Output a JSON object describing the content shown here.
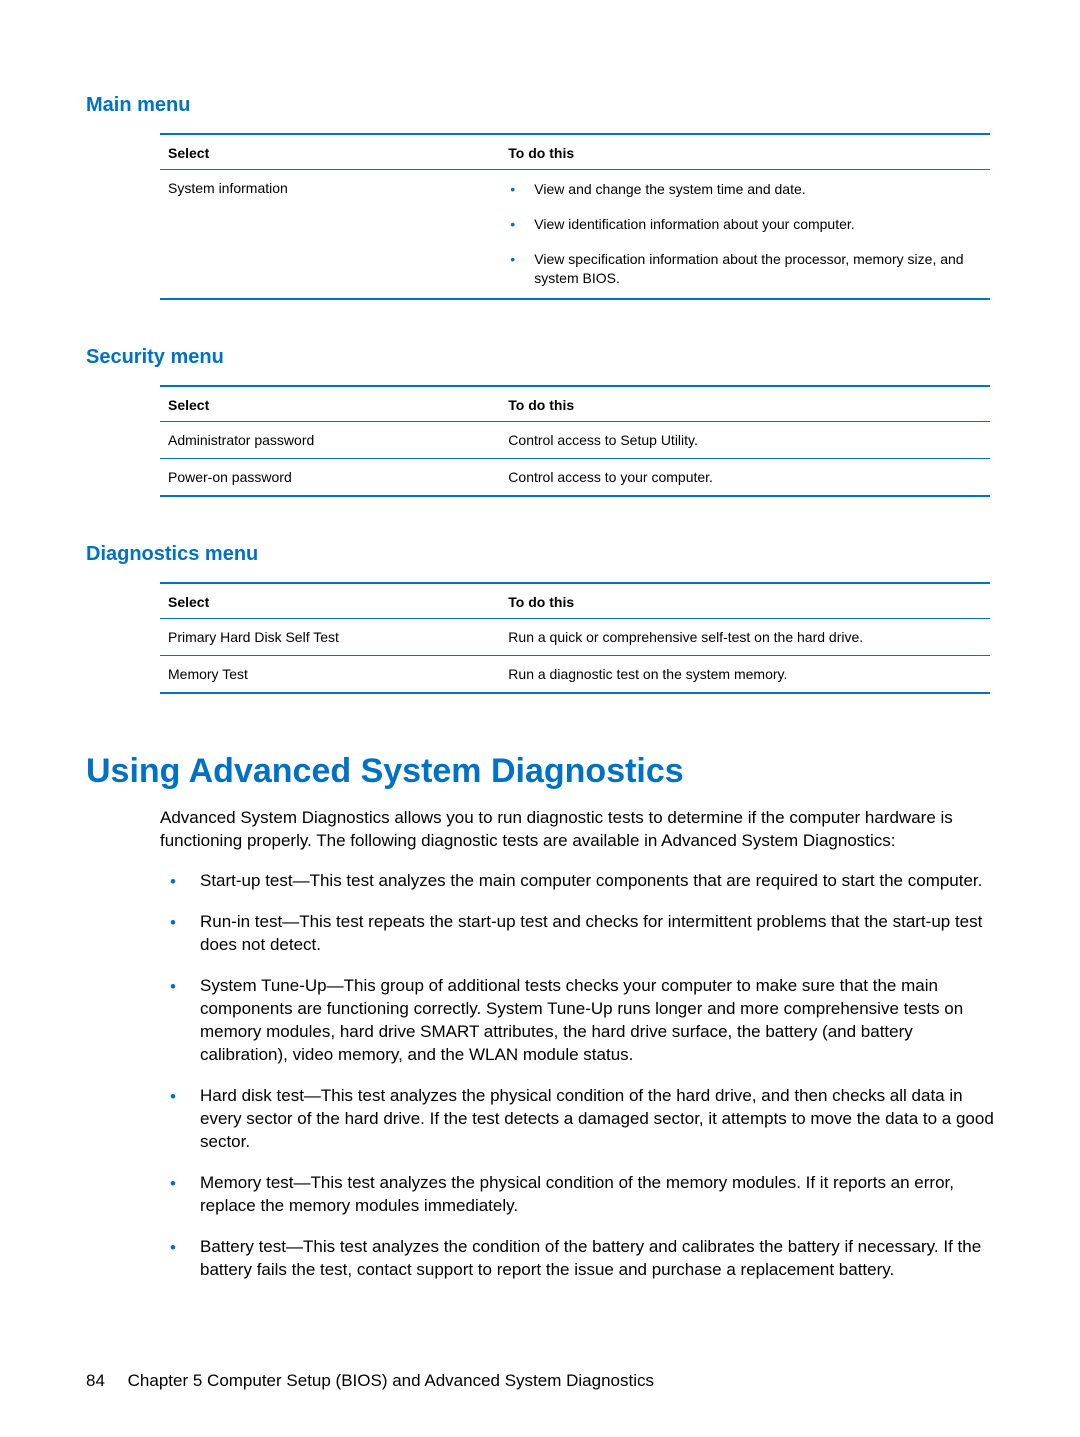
{
  "colors": {
    "accent": "#0171c5",
    "text": "#000000",
    "background": "#ffffff"
  },
  "sections": [
    {
      "title": "Main menu",
      "headers": {
        "select": "Select",
        "action": "To do this"
      },
      "rows": [
        {
          "select": "System information",
          "bullets": [
            "View and change the system time and date.",
            "View identification information about your computer.",
            "View specification information about the processor, memory size, and system BIOS."
          ]
        }
      ]
    },
    {
      "title": "Security menu",
      "headers": {
        "select": "Select",
        "action": "To do this"
      },
      "rows": [
        {
          "select": "Administrator password",
          "action": "Control access to Setup Utility."
        },
        {
          "select": "Power-on password",
          "action": "Control access to your computer."
        }
      ]
    },
    {
      "title": "Diagnostics menu",
      "headers": {
        "select": "Select",
        "action": "To do this"
      },
      "rows": [
        {
          "select": "Primary Hard Disk Self Test",
          "action": "Run a quick or comprehensive self-test on the hard drive."
        },
        {
          "select": "Memory Test",
          "action": "Run a diagnostic test on the system memory."
        }
      ]
    }
  ],
  "diagnostics": {
    "heading": "Using Advanced System Diagnostics",
    "intro": "Advanced System Diagnostics allows you to run diagnostic tests to determine if the computer hardware is functioning properly. The following diagnostic tests are available in Advanced System Diagnostics:",
    "items": [
      "Start-up test—This test analyzes the main computer components that are required to start the computer.",
      "Run-in test—This test repeats the start-up test and checks for intermittent problems that the start-up test does not detect.",
      "System Tune-Up—This group of additional tests checks your computer to make sure that the main components are functioning correctly. System Tune-Up runs longer and more comprehensive tests on memory modules, hard drive SMART attributes, the hard drive surface, the battery (and battery calibration), video memory, and the WLAN module status.",
      "Hard disk test—This test analyzes the physical condition of the hard drive, and then checks all data in every sector of the hard drive. If the test detects a damaged sector, it attempts to move the data to a good sector.",
      "Memory test—This test analyzes the physical condition of the memory modules. If it reports an error, replace the memory modules immediately.",
      "Battery test—This test analyzes the condition of the battery and calibrates the battery if necessary. If the battery fails the test, contact support to report the issue and purchase a replacement battery."
    ]
  },
  "footer": {
    "page": "84",
    "chapter": "Chapter 5   Computer Setup (BIOS) and Advanced System Diagnostics"
  }
}
